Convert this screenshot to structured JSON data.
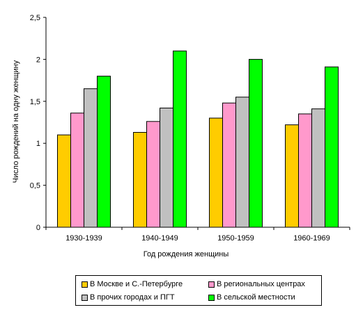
{
  "chart_data": {
    "type": "bar",
    "categories": [
      "1930-1939",
      "1940-1949",
      "1950-1959",
      "1960-1969"
    ],
    "series": [
      {
        "name": "В Москве и С.-Петербурге",
        "color": "#FFCC00",
        "values": [
          1.1,
          1.13,
          1.3,
          1.22
        ]
      },
      {
        "name": "В региональных центрах",
        "color": "#FF99CC",
        "values": [
          1.36,
          1.26,
          1.48,
          1.35
        ]
      },
      {
        "name": "В прочих городах и ПГТ",
        "color": "#C0C0C0",
        "values": [
          1.65,
          1.42,
          1.55,
          1.41
        ]
      },
      {
        "name": "В сельской местности",
        "color": "#00FF00",
        "values": [
          1.8,
          2.1,
          2.0,
          1.91
        ]
      }
    ],
    "xlabel": "Год рождения женщины",
    "ylabel": "Число рождений на одну женщину",
    "ylim": [
      0,
      2.5
    ],
    "yticks": [
      "0",
      "0,5",
      "1",
      "1,5",
      "2",
      "2,5"
    ],
    "grid": false,
    "legend_position": "bottom"
  }
}
